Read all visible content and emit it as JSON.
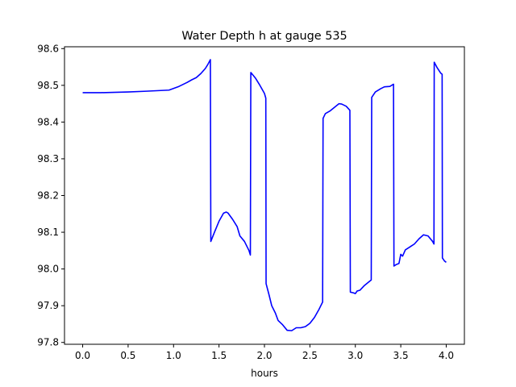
{
  "chart_data": {
    "type": "line",
    "title": "Water Depth h at gauge 535",
    "xlabel": "hours",
    "ylabel": "",
    "xlim": [
      -0.2,
      4.2
    ],
    "ylim": [
      97.795,
      98.605
    ],
    "xticks": [
      0.0,
      0.5,
      1.0,
      1.5,
      2.0,
      2.5,
      3.0,
      3.5,
      4.0
    ],
    "xtick_labels": [
      "0.0",
      "0.5",
      "1.0",
      "1.5",
      "2.0",
      "2.5",
      "3.0",
      "3.5",
      "4.0"
    ],
    "yticks": [
      97.8,
      97.9,
      98.0,
      98.1,
      98.2,
      98.3,
      98.4,
      98.5,
      98.6
    ],
    "ytick_labels": [
      "97.8",
      "97.9",
      "98.0",
      "98.1",
      "98.2",
      "98.3",
      "98.4",
      "98.5",
      "98.6"
    ],
    "grid": false,
    "series": [
      {
        "name": "",
        "color": "#0000ff",
        "points": [
          [
            0.0,
            98.48
          ],
          [
            0.2,
            98.48
          ],
          [
            0.5,
            98.482
          ],
          [
            0.7,
            98.484
          ],
          [
            0.95,
            98.487
          ],
          [
            1.05,
            98.496
          ],
          [
            1.15,
            98.508
          ],
          [
            1.2,
            98.515
          ],
          [
            1.25,
            98.521
          ],
          [
            1.3,
            98.532
          ],
          [
            1.35,
            98.546
          ],
          [
            1.38,
            98.558
          ],
          [
            1.405,
            98.57
          ],
          [
            1.41,
            98.075
          ],
          [
            1.45,
            98.1
          ],
          [
            1.5,
            98.13
          ],
          [
            1.55,
            98.152
          ],
          [
            1.58,
            98.155
          ],
          [
            1.6,
            98.152
          ],
          [
            1.65,
            98.135
          ],
          [
            1.7,
            98.115
          ],
          [
            1.73,
            98.09
          ],
          [
            1.78,
            98.075
          ],
          [
            1.83,
            98.05
          ],
          [
            1.845,
            98.038
          ],
          [
            1.85,
            98.535
          ],
          [
            1.9,
            98.52
          ],
          [
            1.95,
            98.5
          ],
          [
            2.0,
            98.478
          ],
          [
            2.015,
            98.465
          ],
          [
            2.018,
            97.96
          ],
          [
            2.05,
            97.93
          ],
          [
            2.08,
            97.9
          ],
          [
            2.12,
            97.88
          ],
          [
            2.15,
            97.86
          ],
          [
            2.2,
            97.848
          ],
          [
            2.25,
            97.833
          ],
          [
            2.3,
            97.832
          ],
          [
            2.35,
            97.84
          ],
          [
            2.4,
            97.84
          ],
          [
            2.45,
            97.843
          ],
          [
            2.5,
            97.852
          ],
          [
            2.55,
            97.868
          ],
          [
            2.6,
            97.89
          ],
          [
            2.64,
            97.91
          ],
          [
            2.645,
            98.41
          ],
          [
            2.67,
            98.423
          ],
          [
            2.72,
            98.43
          ],
          [
            2.78,
            98.442
          ],
          [
            2.82,
            98.45
          ],
          [
            2.85,
            98.449
          ],
          [
            2.9,
            98.443
          ],
          [
            2.94,
            98.432
          ],
          [
            2.945,
            97.937
          ],
          [
            2.98,
            97.935
          ],
          [
            3.0,
            97.933
          ],
          [
            3.02,
            97.94
          ],
          [
            3.05,
            97.942
          ],
          [
            3.1,
            97.955
          ],
          [
            3.15,
            97.965
          ],
          [
            3.175,
            97.97
          ],
          [
            3.18,
            98.467
          ],
          [
            3.22,
            98.482
          ],
          [
            3.28,
            98.491
          ],
          [
            3.32,
            98.496
          ],
          [
            3.38,
            98.497
          ],
          [
            3.42,
            98.503
          ],
          [
            3.425,
            98.008
          ],
          [
            3.45,
            98.012
          ],
          [
            3.48,
            98.015
          ],
          [
            3.5,
            98.04
          ],
          [
            3.52,
            98.035
          ],
          [
            3.55,
            98.052
          ],
          [
            3.6,
            98.06
          ],
          [
            3.65,
            98.068
          ],
          [
            3.7,
            98.082
          ],
          [
            3.75,
            98.093
          ],
          [
            3.8,
            98.09
          ],
          [
            3.85,
            98.075
          ],
          [
            3.865,
            98.068
          ],
          [
            3.868,
            98.563
          ],
          [
            3.9,
            98.548
          ],
          [
            3.94,
            98.533
          ],
          [
            3.955,
            98.53
          ],
          [
            3.958,
            98.03
          ],
          [
            3.98,
            98.022
          ],
          [
            4.0,
            98.018
          ]
        ]
      }
    ]
  }
}
